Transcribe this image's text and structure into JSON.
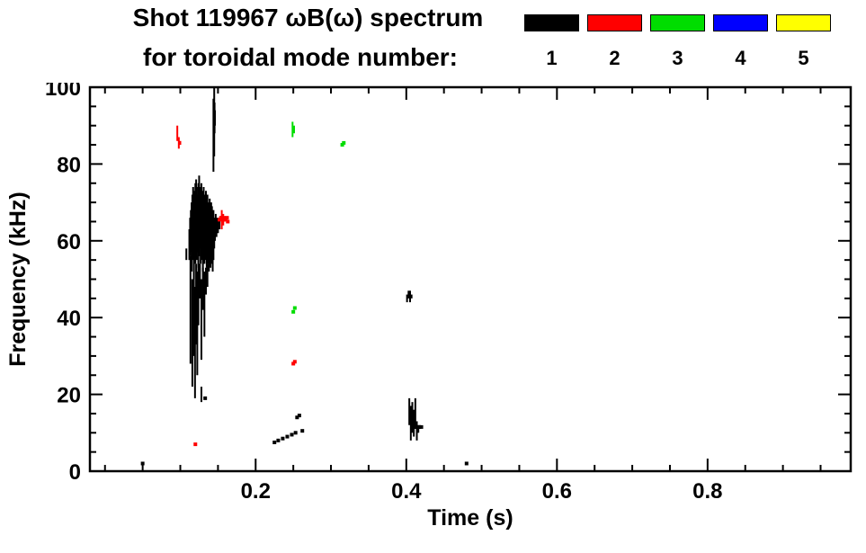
{
  "header": {
    "title_line1": "Shot 119967 ωB(ω) spectrum",
    "title_line2": "for toroidal mode number:",
    "legend": {
      "entries": [
        {
          "label": "1",
          "color": "#000000"
        },
        {
          "label": "2",
          "color": "#ff0000"
        },
        {
          "label": "3",
          "color": "#00dd00"
        },
        {
          "label": "4",
          "color": "#0000ff"
        },
        {
          "label": "5",
          "color": "#ffff00"
        }
      ]
    }
  },
  "chart_data": {
    "type": "scatter",
    "title": "Shot 119967 ωB(ω) spectrum for toroidal mode number: 1 2 3 4 5",
    "xlabel": "Time (s)",
    "ylabel": "Frequency (kHz)",
    "xlim": [
      -0.02,
      0.99
    ],
    "ylim": [
      0,
      100
    ],
    "x_major_ticks": [
      0.2,
      0.4,
      0.6,
      0.8
    ],
    "x_minor_step": 0.05,
    "y_major_ticks": [
      0,
      20,
      40,
      60,
      80,
      100
    ],
    "y_minor_step": 5,
    "grid": false,
    "legend_position": "top-right",
    "series": [
      {
        "name": "1",
        "color": "#000000",
        "strokes": [
          [
            0.108,
            55,
            58
          ],
          [
            0.112,
            55,
            63
          ],
          [
            0.113,
            56,
            66
          ],
          [
            0.114,
            57,
            68
          ],
          [
            0.115,
            52,
            70
          ],
          [
            0.116,
            58,
            72
          ],
          [
            0.117,
            55,
            74
          ],
          [
            0.118,
            50,
            71
          ],
          [
            0.119,
            57,
            73
          ],
          [
            0.12,
            54,
            75
          ],
          [
            0.121,
            58,
            76
          ],
          [
            0.122,
            55,
            74
          ],
          [
            0.123,
            57,
            72
          ],
          [
            0.124,
            53,
            75
          ],
          [
            0.125,
            56,
            77
          ],
          [
            0.126,
            58,
            74
          ],
          [
            0.127,
            54,
            72
          ],
          [
            0.128,
            57,
            75
          ],
          [
            0.129,
            55,
            73
          ],
          [
            0.13,
            52,
            71
          ],
          [
            0.131,
            56,
            74
          ],
          [
            0.132,
            54,
            72
          ],
          [
            0.133,
            57,
            70
          ],
          [
            0.134,
            55,
            73
          ],
          [
            0.135,
            53,
            71
          ],
          [
            0.136,
            56,
            72
          ],
          [
            0.137,
            54,
            70
          ],
          [
            0.138,
            52,
            69
          ],
          [
            0.139,
            55,
            71
          ],
          [
            0.14,
            53,
            68
          ],
          [
            0.141,
            56,
            70
          ],
          [
            0.142,
            54,
            69
          ],
          [
            0.143,
            52,
            67
          ],
          [
            0.144,
            55,
            68
          ],
          [
            0.145,
            58,
            66
          ],
          [
            0.146,
            60,
            66
          ],
          [
            0.147,
            62,
            67
          ],
          [
            0.148,
            61,
            66
          ],
          [
            0.15,
            62,
            66
          ],
          [
            0.152,
            63,
            66
          ],
          [
            0.1135,
            28,
            56
          ],
          [
            0.116,
            22,
            50
          ],
          [
            0.118,
            30,
            55
          ],
          [
            0.1195,
            19,
            48
          ],
          [
            0.121,
            33,
            54
          ],
          [
            0.1225,
            25,
            52
          ],
          [
            0.124,
            38,
            55
          ],
          [
            0.126,
            45,
            54
          ],
          [
            0.128,
            29,
            50
          ],
          [
            0.13,
            42,
            53
          ],
          [
            0.132,
            35,
            52
          ],
          [
            0.134,
            46,
            53
          ],
          [
            0.136,
            48,
            54
          ],
          [
            0.128,
            18,
            22
          ],
          [
            0.144,
            78,
            97
          ],
          [
            0.145,
            82,
            100
          ],
          [
            0.1455,
            88,
            96
          ],
          [
            0.146,
            90,
            94
          ],
          [
            0.401,
            44,
            46
          ],
          [
            0.403,
            45,
            47
          ],
          [
            0.405,
            44,
            47
          ],
          [
            0.407,
            45,
            46
          ],
          [
            0.404,
            12,
            19
          ],
          [
            0.406,
            8,
            17
          ],
          [
            0.408,
            10,
            18
          ],
          [
            0.41,
            9,
            16
          ],
          [
            0.412,
            11,
            19
          ],
          [
            0.414,
            8,
            13
          ],
          [
            0.416,
            10,
            12
          ],
          [
            0.418,
            11,
            12
          ]
        ],
        "points": [
          [
            0.05,
            2
          ],
          [
            0.225,
            7.5
          ],
          [
            0.23,
            8
          ],
          [
            0.236,
            8.5
          ],
          [
            0.242,
            9
          ],
          [
            0.248,
            9.5
          ],
          [
            0.253,
            10
          ],
          [
            0.255,
            14
          ],
          [
            0.258,
            14.5
          ],
          [
            0.262,
            10.5
          ],
          [
            0.48,
            2
          ],
          [
            0.133,
            19
          ],
          [
            0.42,
            11.5
          ]
        ]
      },
      {
        "name": "2",
        "color": "#ff0000",
        "strokes": [
          [
            0.096,
            86,
            90
          ],
          [
            0.098,
            84,
            87
          ],
          [
            0.1,
            85,
            86
          ],
          [
            0.155,
            63,
            68
          ],
          [
            0.157,
            64,
            67
          ],
          [
            0.159,
            65,
            66
          ]
        ],
        "points": [
          [
            0.152,
            65.5
          ],
          [
            0.154,
            66
          ],
          [
            0.156,
            65.5
          ],
          [
            0.158,
            66
          ],
          [
            0.16,
            65.5
          ],
          [
            0.162,
            66
          ],
          [
            0.163,
            65
          ],
          [
            0.25,
            28
          ],
          [
            0.252,
            28.5
          ],
          [
            0.12,
            7
          ]
        ]
      },
      {
        "name": "3",
        "color": "#00dd00",
        "strokes": [
          [
            0.249,
            87,
            91
          ],
          [
            0.251,
            88,
            90
          ]
        ],
        "points": [
          [
            0.25,
            41.5
          ],
          [
            0.252,
            42.5
          ],
          [
            0.315,
            85
          ],
          [
            0.317,
            85.5
          ]
        ]
      },
      {
        "name": "4",
        "color": "#0000ff",
        "strokes": [],
        "points": []
      },
      {
        "name": "5",
        "color": "#ffff00",
        "strokes": [],
        "points": []
      }
    ]
  }
}
